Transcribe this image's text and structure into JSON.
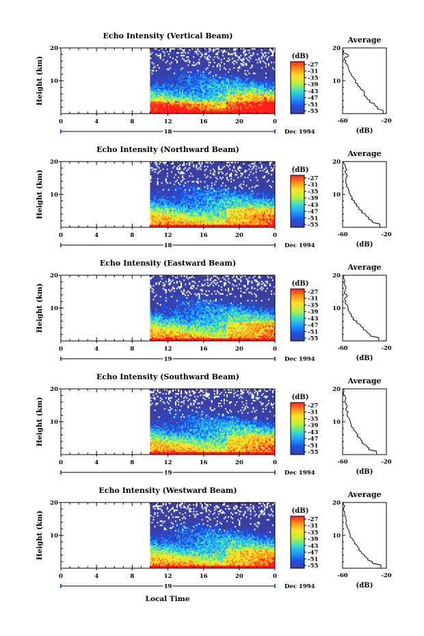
{
  "figure": {
    "xlabel": "Local Time",
    "date_label": "Dec 1994",
    "colorbar": {
      "unit": "(dB)",
      "ticks": [
        "-27",
        "-31",
        "-35",
        "-39",
        "-43",
        "-47",
        "-51",
        "-55"
      ],
      "colors": [
        "#ff1f1f",
        "#ff8c1a",
        "#ffe02a",
        "#b8f03c",
        "#3fe0c8",
        "#1fa0ff",
        "#1f52e6",
        "#3b3fa3"
      ]
    },
    "colors": {
      "nodata_fill": "#3b3fa3",
      "frame": "#000000",
      "profile_line": "#000000"
    }
  },
  "chart_data": [
    {
      "type": "heatmap",
      "title": "Echo Intensity (Vertical Beam)",
      "ylabel": "Height (km)",
      "x_ticks": [
        "0",
        "4",
        "8",
        "12",
        "16",
        "20",
        "0"
      ],
      "y_ticks": [
        "20",
        "10"
      ],
      "day_label": "18",
      "xlim": [
        0,
        24
      ],
      "ylim": [
        0,
        20
      ],
      "data_start_hour": 10,
      "profile": {
        "title": "Average",
        "xlabel": "(dB)",
        "x_ticks": [
          "-60",
          "-20"
        ],
        "y_ticks": [
          "20",
          "10"
        ],
        "xlim": [
          -60,
          -20
        ],
        "ylim": [
          0,
          20
        ],
        "height_km": [
          1,
          2,
          3,
          4,
          5,
          6,
          7,
          8,
          9,
          10,
          11,
          12,
          13,
          14,
          15,
          16,
          17,
          18,
          19,
          20
        ],
        "db": [
          -23,
          -28,
          -31,
          -35,
          -38,
          -40,
          -41,
          -44,
          -46,
          -48,
          -50,
          -52,
          -54,
          -55,
          -56,
          -57,
          -58,
          -55,
          -59,
          -60
        ]
      }
    },
    {
      "type": "heatmap",
      "title": "Echo Intensity (Northward Beam)",
      "ylabel": "Height (km)",
      "x_ticks": [
        "0",
        "4",
        "8",
        "12",
        "16",
        "20",
        "0"
      ],
      "y_ticks": [
        "20",
        "10"
      ],
      "day_label": "18",
      "xlim": [
        0,
        24
      ],
      "ylim": [
        0,
        20
      ],
      "data_start_hour": 10,
      "profile": {
        "title": "Average",
        "xlabel": "(dB)",
        "x_ticks": [
          "-60",
          "-20"
        ],
        "y_ticks": [
          "20",
          "10"
        ],
        "xlim": [
          -60,
          -20
        ],
        "ylim": [
          0,
          20
        ],
        "height_km": [
          1,
          2,
          3,
          4,
          5,
          6,
          7,
          8,
          9,
          10,
          11,
          12,
          13,
          14,
          15,
          16,
          17,
          18,
          19,
          20
        ],
        "db": [
          -26,
          -33,
          -36,
          -39,
          -42,
          -45,
          -47,
          -49,
          -51,
          -53,
          -54,
          -55,
          -56,
          -57,
          -57,
          -56,
          -58,
          -57,
          -58,
          -59
        ]
      }
    },
    {
      "type": "heatmap",
      "title": "Echo Intensity (Eastward Beam)",
      "ylabel": "Height (km)",
      "x_ticks": [
        "0",
        "4",
        "8",
        "12",
        "16",
        "20",
        "0"
      ],
      "y_ticks": [
        "20",
        "10"
      ],
      "day_label": "19",
      "xlim": [
        0,
        24
      ],
      "ylim": [
        0,
        20
      ],
      "data_start_hour": 10,
      "profile": {
        "title": "Average",
        "xlabel": "(dB)",
        "x_ticks": [
          "-60",
          "-20"
        ],
        "y_ticks": [
          "20",
          "10"
        ],
        "xlim": [
          -60,
          -20
        ],
        "ylim": [
          0,
          20
        ],
        "height_km": [
          1,
          2,
          3,
          4,
          5,
          6,
          7,
          8,
          9,
          10,
          11,
          12,
          13,
          14,
          15,
          16,
          17,
          18,
          19,
          20
        ],
        "db": [
          -27,
          -35,
          -38,
          -41,
          -44,
          -47,
          -50,
          -52,
          -54,
          -55,
          -56,
          -57,
          -58,
          -56,
          -58,
          -57,
          -58,
          -58,
          -59,
          -59
        ]
      }
    },
    {
      "type": "heatmap",
      "title": "Echo Intensity (Southward Beam)",
      "ylabel": "Height (km)",
      "x_ticks": [
        "0",
        "4",
        "8",
        "12",
        "16",
        "20",
        "0"
      ],
      "y_ticks": [
        "20",
        "10"
      ],
      "day_label": "19",
      "xlim": [
        0,
        24
      ],
      "ylim": [
        0,
        20
      ],
      "data_start_hour": 10,
      "profile": {
        "title": "Average",
        "xlabel": "(dB)",
        "x_ticks": [
          "-60",
          "-20"
        ],
        "y_ticks": [
          "20",
          "10"
        ],
        "xlim": [
          -60,
          -20
        ],
        "ylim": [
          0,
          20
        ],
        "height_km": [
          1,
          2,
          3,
          4,
          5,
          6,
          7,
          8,
          9,
          10,
          11,
          12,
          13,
          14,
          15,
          16,
          17,
          18,
          19,
          20
        ],
        "db": [
          -29,
          -36,
          -39,
          -42,
          -44,
          -46,
          -48,
          -50,
          -52,
          -53,
          -54,
          -56,
          -55,
          -57,
          -56,
          -58,
          -57,
          -58,
          -59,
          -59
        ]
      }
    },
    {
      "type": "heatmap",
      "title": "Echo Intensity (Westward Beam)",
      "ylabel": "Height (km)",
      "x_ticks": [
        "0",
        "4",
        "8",
        "12",
        "16",
        "20",
        "0"
      ],
      "y_ticks": [
        "20",
        "10"
      ],
      "day_label": "19",
      "xlim": [
        0,
        24
      ],
      "ylim": [
        0,
        20
      ],
      "data_start_hour": 10,
      "profile": {
        "title": "Average",
        "xlabel": "(dB)",
        "x_ticks": [
          "-60",
          "-20"
        ],
        "y_ticks": [
          "20",
          "10"
        ],
        "xlim": [
          -60,
          -20
        ],
        "ylim": [
          0,
          20
        ],
        "height_km": [
          1,
          2,
          3,
          4,
          5,
          6,
          7,
          8,
          9,
          10,
          11,
          12,
          13,
          14,
          15,
          16,
          17,
          18,
          19,
          20
        ],
        "db": [
          -25,
          -33,
          -37,
          -40,
          -43,
          -45,
          -47,
          -49,
          -51,
          -53,
          -54,
          -55,
          -56,
          -57,
          -57,
          -58,
          -58,
          -59,
          -58,
          -59
        ]
      }
    }
  ]
}
